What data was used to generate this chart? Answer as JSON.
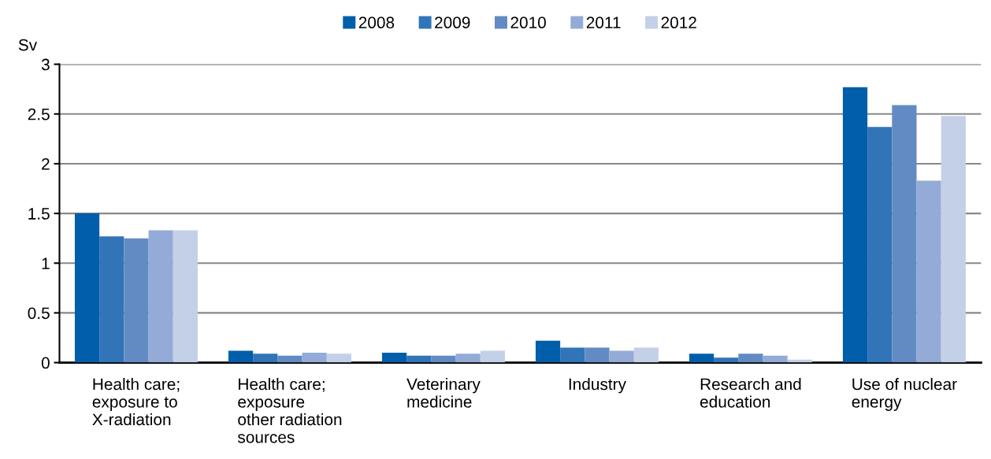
{
  "chart_data": {
    "type": "bar",
    "ylabel": "Sv",
    "categories": [
      "Health care;\nexposure to\nX-radiation",
      "Health care;\nexposure\nother radiation\nsources",
      "Veterinary\nmedicine",
      "Industry",
      "Research and\neducation",
      "Use of nuclear\nenergy"
    ],
    "series": [
      {
        "name": "2008",
        "color": "#005eaa",
        "values": [
          1.5,
          0.12,
          0.1,
          0.22,
          0.09,
          2.77
        ]
      },
      {
        "name": "2009",
        "color": "#3174b8",
        "values": [
          1.27,
          0.09,
          0.07,
          0.15,
          0.05,
          2.37
        ]
      },
      {
        "name": "2010",
        "color": "#628bc3",
        "values": [
          1.25,
          0.07,
          0.07,
          0.15,
          0.09,
          2.59
        ]
      },
      {
        "name": "2011",
        "color": "#93abd6",
        "values": [
          1.33,
          0.1,
          0.09,
          0.12,
          0.07,
          1.83
        ]
      },
      {
        "name": "2012",
        "color": "#c3d0e8",
        "values": [
          1.33,
          0.09,
          0.12,
          0.15,
          0.03,
          2.48
        ]
      }
    ],
    "ylim": [
      0,
      3
    ],
    "yticks": [
      0,
      0.5,
      1,
      1.5,
      2,
      2.5,
      3
    ],
    "grid": "y",
    "legend": "top"
  }
}
